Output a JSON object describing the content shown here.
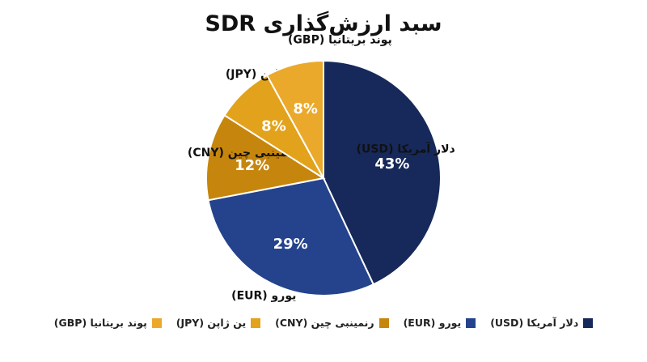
{
  "chart_data": {
    "type": "pie",
    "title": "سبد ارزش‌گذاری SDR",
    "series": [
      {
        "name": "دلار آمریکا (USD)",
        "value": 43,
        "label": "43%",
        "color": "#16295a"
      },
      {
        "name": "یورو (EUR)",
        "value": 29,
        "label": "29%",
        "color": "#24438c"
      },
      {
        "name": "رنمینبی چین (CNY)",
        "value": 12,
        "label": "12%",
        "color": "#c6860d"
      },
      {
        "name": "ین ژاپن (JPY)",
        "value": 8,
        "label": "8%",
        "color": "#e3a21b"
      },
      {
        "name": "پوند بریتانیا (GBP)",
        "value": 8,
        "label": "8%",
        "color": "#eba92c"
      }
    ],
    "legend": "bottom"
  }
}
